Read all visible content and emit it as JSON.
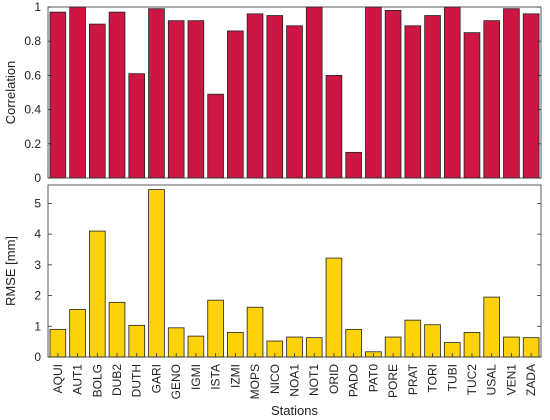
{
  "chart_data": [
    {
      "type": "bar",
      "ylabel": "Correlation",
      "ylim": [
        0,
        1
      ],
      "yticks": [
        "0",
        "0.2",
        "0.4",
        "0.6",
        "0.8",
        "1"
      ],
      "categories": [
        "AQUI",
        "AUT1",
        "BOLG",
        "DUB2",
        "DUTH",
        "GARI",
        "GENO",
        "IGMI",
        "ISTA",
        "IZMI",
        "MOPS",
        "NICO",
        "NOA1",
        "NOT1",
        "ORID",
        "PADO",
        "PAT0",
        "PORE",
        "PRAT",
        "TORI",
        "TUBI",
        "TUC2",
        "USAL",
        "VEN1",
        "ZADA"
      ],
      "values": [
        0.97,
        1.0,
        0.9,
        0.97,
        0.61,
        0.99,
        0.92,
        0.92,
        0.49,
        0.86,
        0.96,
        0.95,
        0.89,
        1.0,
        0.6,
        0.15,
        1.0,
        0.98,
        0.89,
        0.95,
        1.0,
        0.85,
        0.92,
        0.99,
        0.96
      ],
      "color": "#cc1744"
    },
    {
      "type": "bar",
      "ylabel": "RMSE [mm]",
      "xlabel": "Stations",
      "ylim": [
        0,
        5.6
      ],
      "yticks": [
        "0",
        "1",
        "2",
        "3",
        "4",
        "5"
      ],
      "categories": [
        "AQUI",
        "AUT1",
        "BOLG",
        "DUB2",
        "DUTH",
        "GARI",
        "GENO",
        "IGMI",
        "ISTA",
        "IZMI",
        "MOPS",
        "NICO",
        "NOA1",
        "NOT1",
        "ORID",
        "PADO",
        "PAT0",
        "PORE",
        "PRAT",
        "TORI",
        "TUBI",
        "TUC2",
        "USAL",
        "VEN1",
        "ZADA"
      ],
      "values": [
        0.9,
        1.55,
        4.1,
        1.78,
        1.03,
        5.45,
        0.95,
        0.68,
        1.85,
        0.8,
        1.62,
        0.52,
        0.65,
        0.63,
        3.22,
        0.9,
        0.17,
        0.65,
        1.2,
        1.05,
        0.47,
        0.8,
        1.95,
        0.65,
        0.63
      ],
      "color": "#fcd20a"
    }
  ]
}
